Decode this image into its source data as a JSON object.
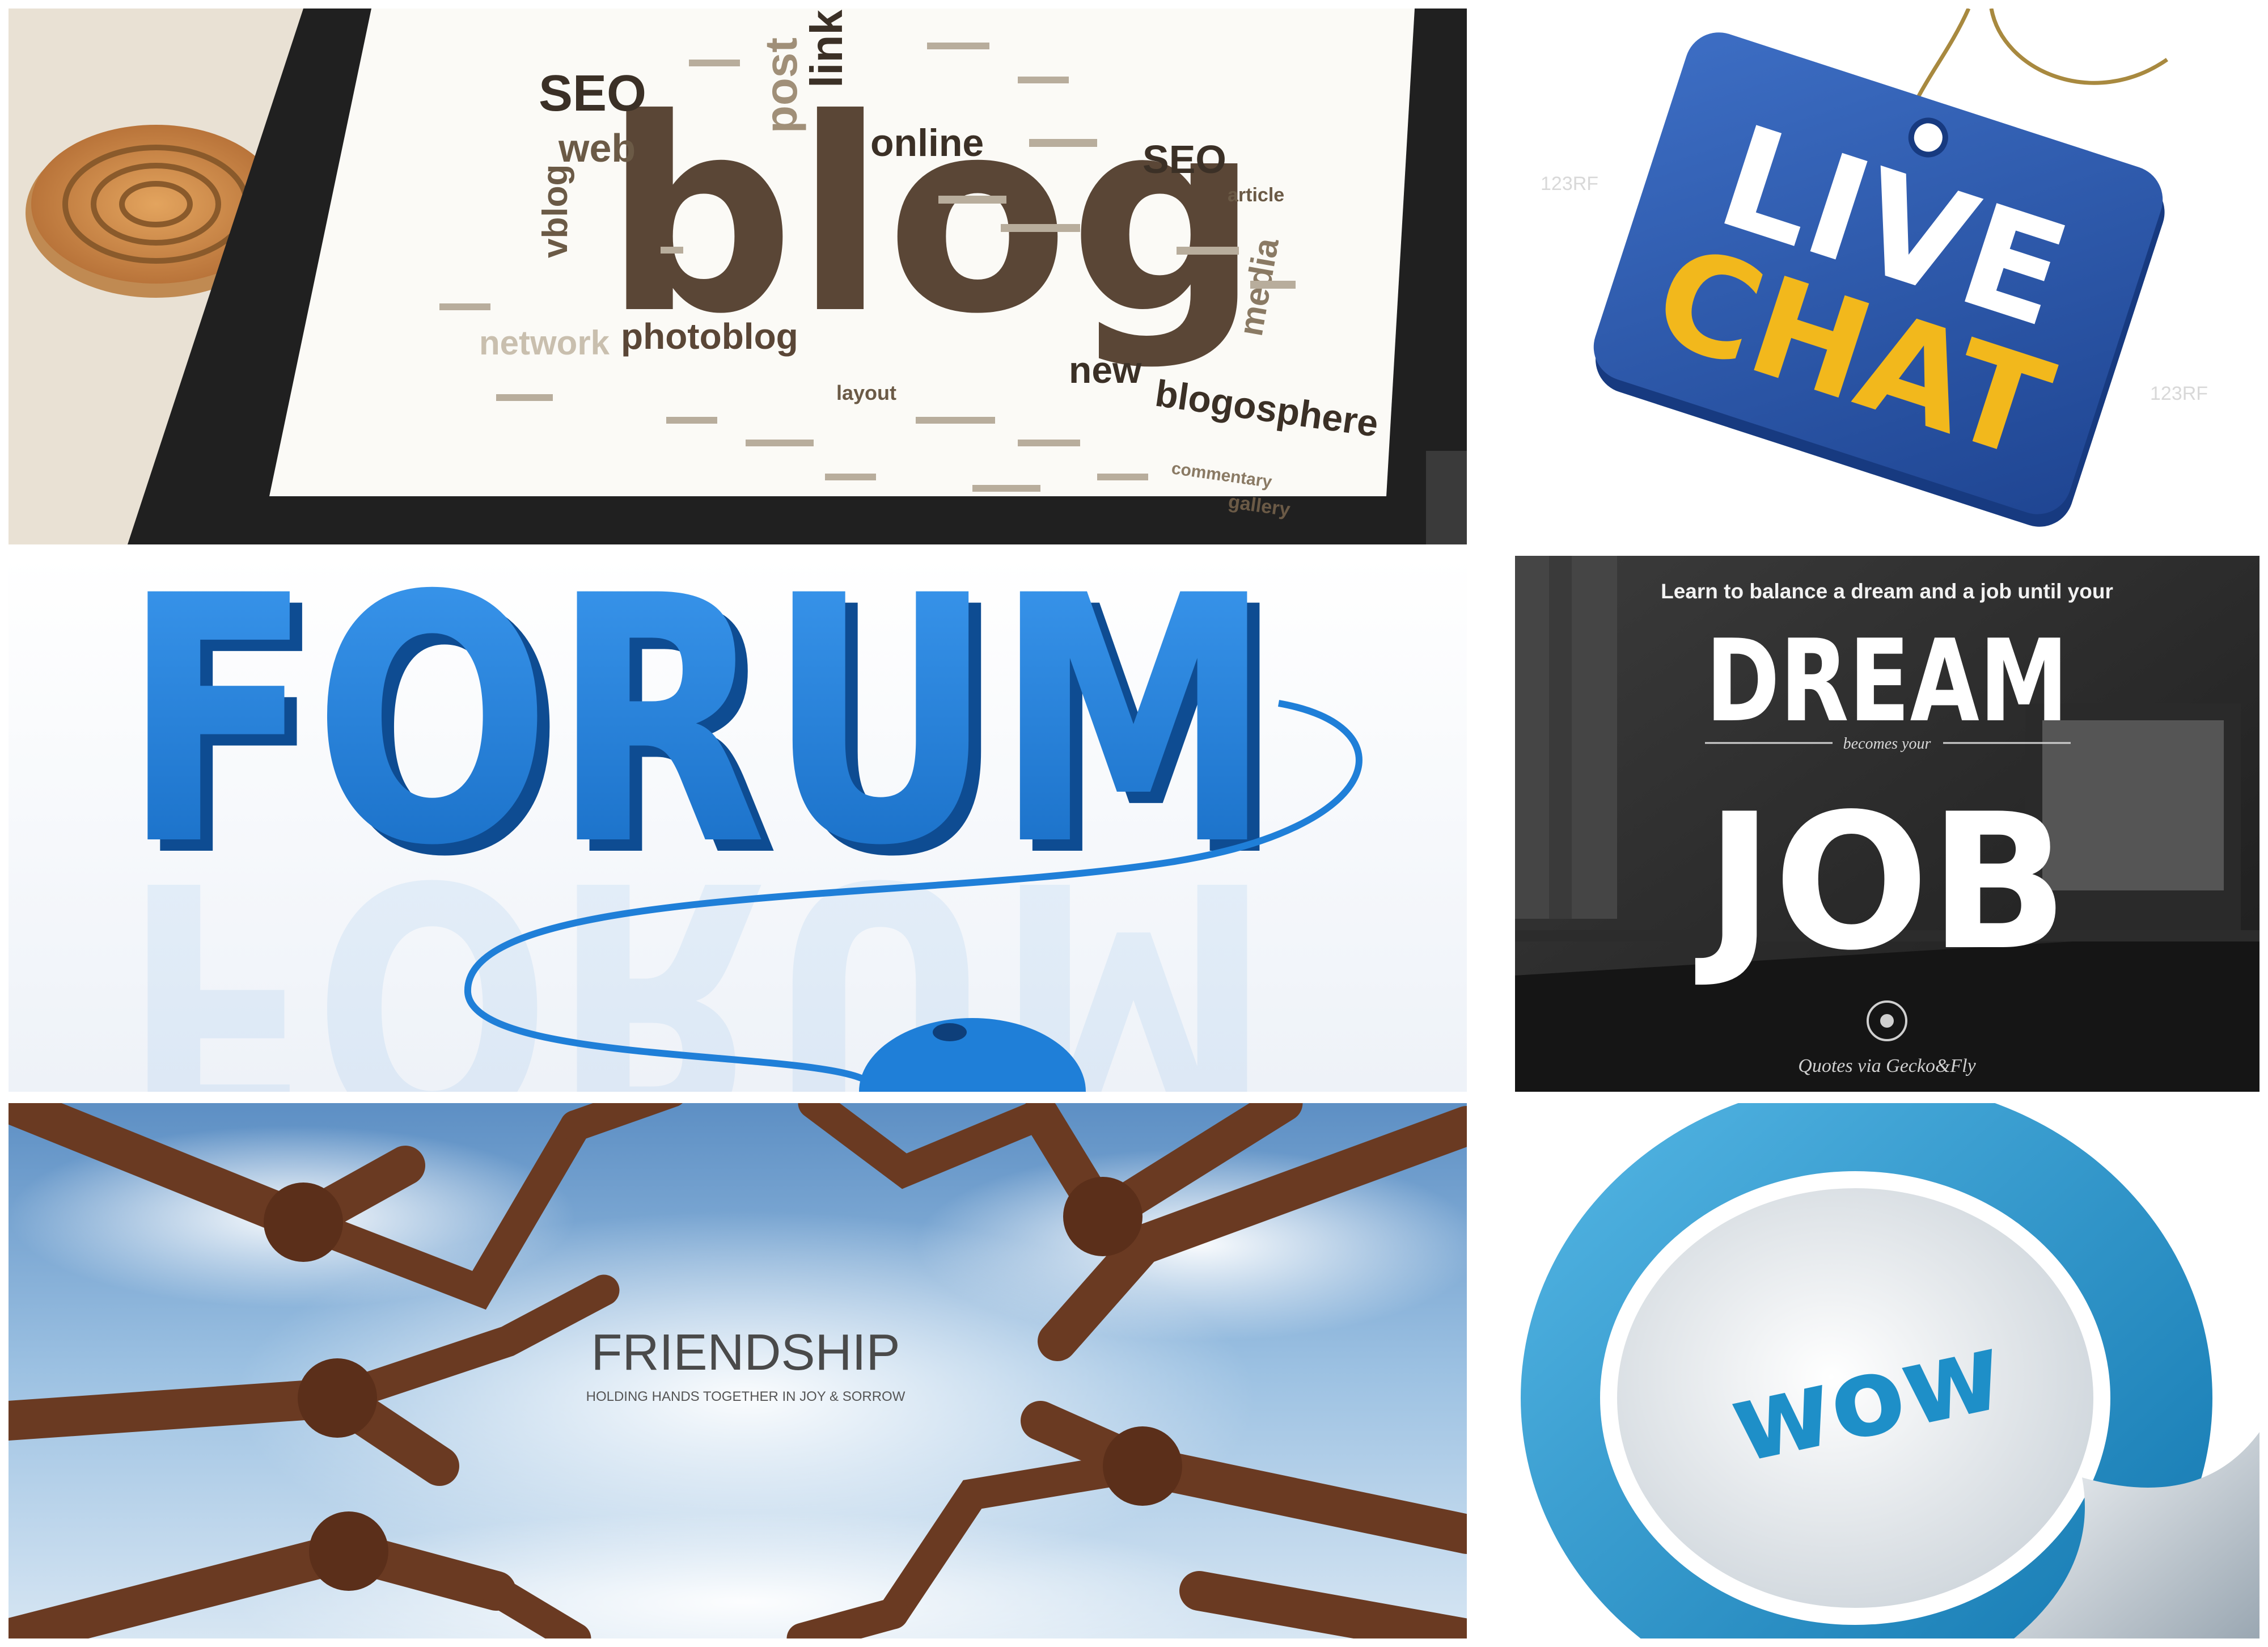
{
  "tiles": {
    "blog": {
      "title": "blog",
      "words": {
        "seo1": "SEO",
        "web": "web",
        "vblog": "vblog",
        "post": "post",
        "links": "links",
        "online": "online",
        "seo2": "SEO",
        "network": "network",
        "photoblog": "photoblog",
        "new": "new",
        "blogosphere": "blogosphere",
        "media": "media",
        "article": "article",
        "layout": "layout",
        "gallery": "gallery",
        "commentary": "commentary"
      }
    },
    "live_chat": {
      "line1": "LIVE",
      "line2": "CHAT",
      "watermark": "123RF"
    },
    "forum": {
      "title": "FORUM"
    },
    "dream_job": {
      "tagline": "Learn to balance a dream and a job until your",
      "word1": "DREAM",
      "connector": "becomes your",
      "word2": "JOB",
      "credit": "Quotes via Gecko&Fly"
    },
    "friendship": {
      "title": "FRIENDSHIP",
      "subtitle": "HOLDING HANDS TOGETHER IN JOY & SORROW"
    },
    "wow": {
      "title": "wow"
    }
  },
  "colors": {
    "blog_brown": "#5a4636",
    "live_blue": "#2a55a8",
    "live_yellow": "#f2b81c",
    "forum_blue": "#1f7fd8",
    "dream_bg": "#2b2b2b",
    "wow_blue": "#1e8fc8"
  }
}
